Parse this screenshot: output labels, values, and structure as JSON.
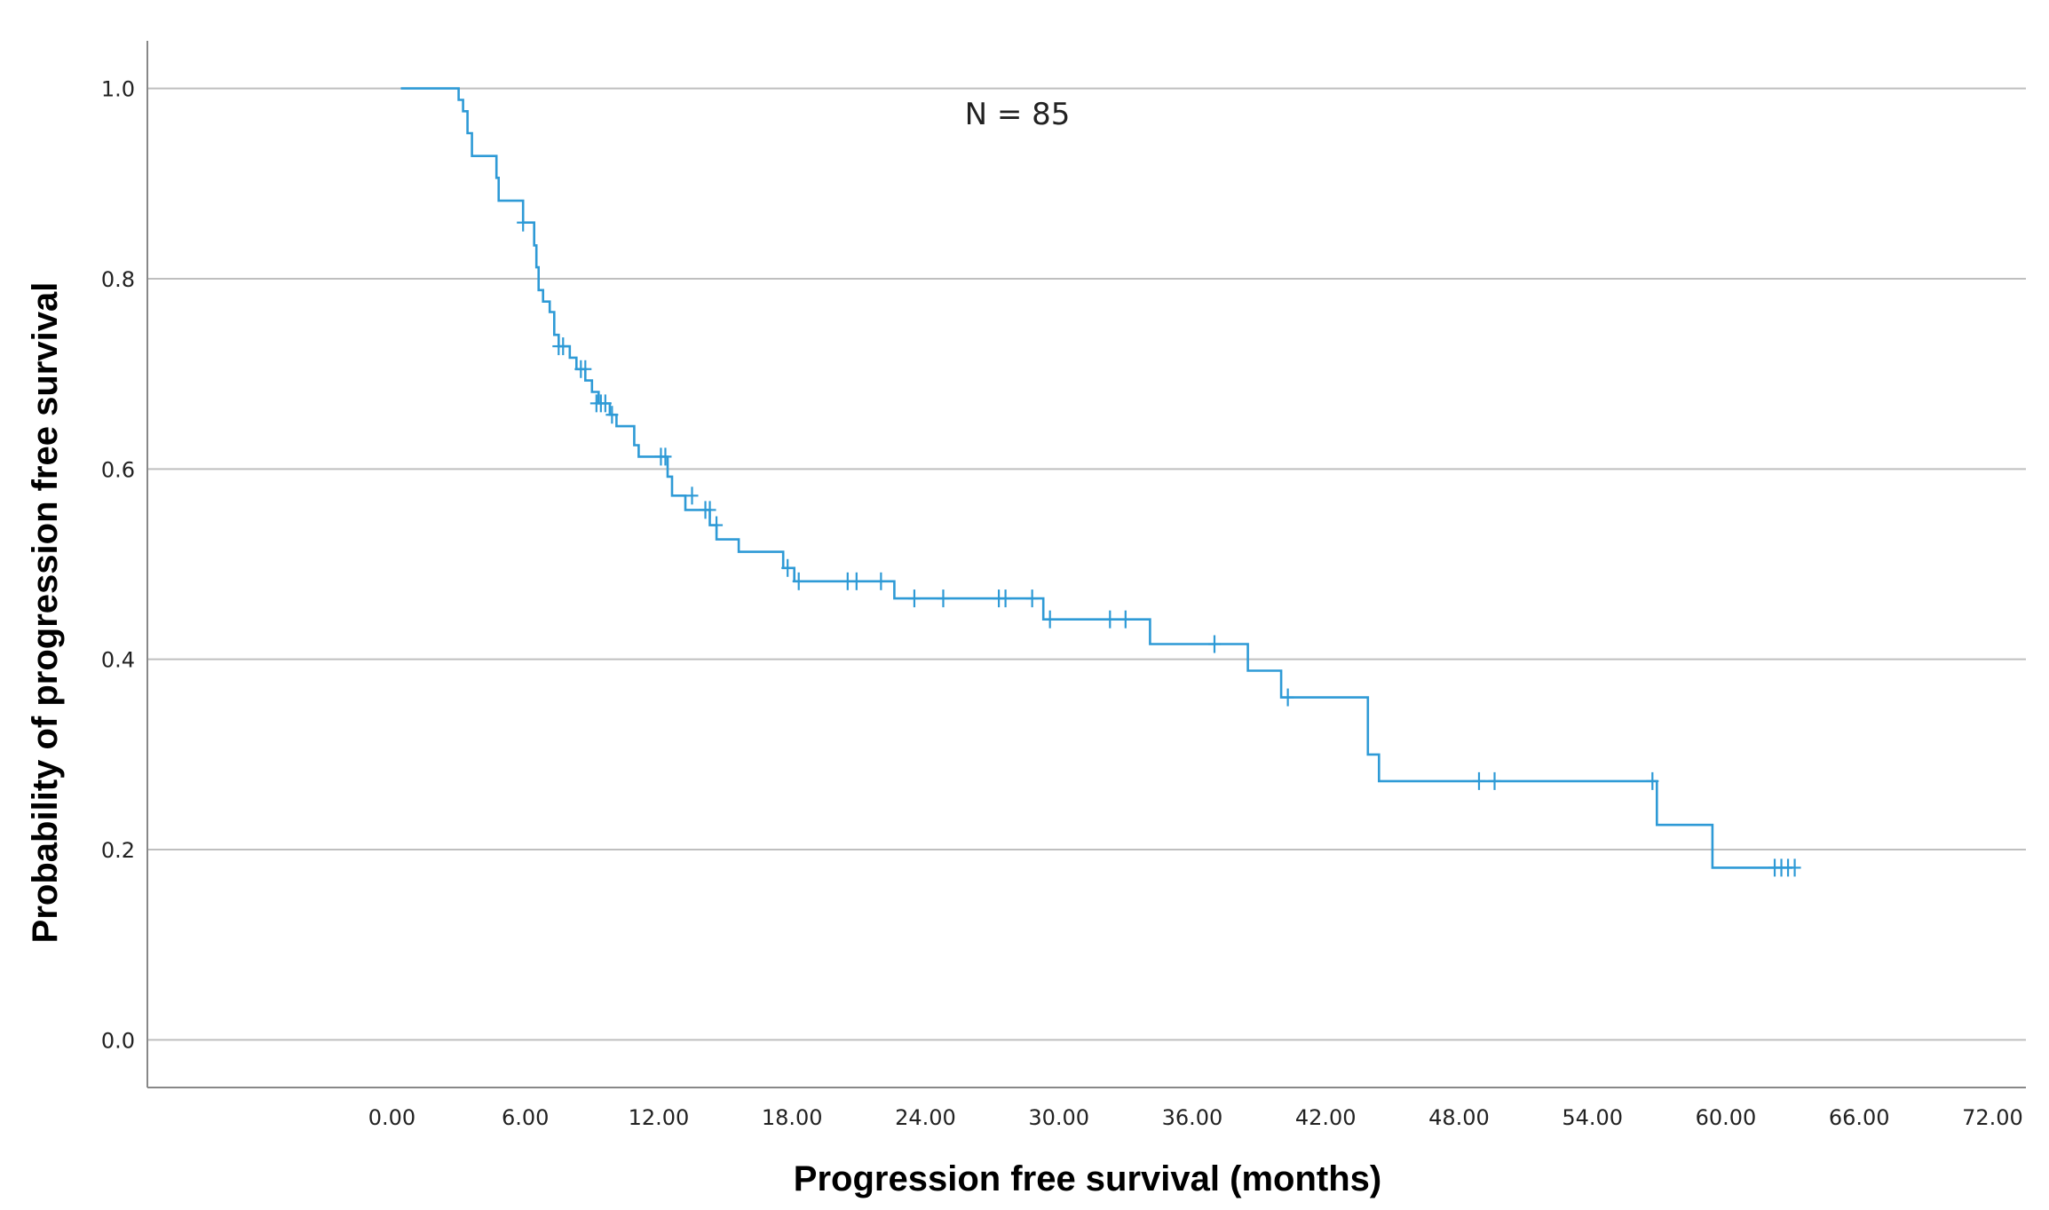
{
  "chart_data": {
    "type": "line",
    "subtype": "kaplan-meier",
    "annotation": "N = 85",
    "xlabel": "Progression free survival (months)",
    "ylabel": "Probability of progression free survival",
    "xlim": [
      -11,
      73.5
    ],
    "ylim": [
      -0.05,
      1.05
    ],
    "x_ticks": [
      0,
      6,
      12,
      18,
      24,
      30,
      36,
      42,
      48,
      54,
      60,
      66,
      72
    ],
    "x_tick_labels": [
      "0.00",
      "6.00",
      "12.00",
      "18.00",
      "24.00",
      "30.00",
      "36.00",
      "42.00",
      "48.00",
      "54.00",
      "60.00",
      "66.00",
      "72.00"
    ],
    "y_ticks": [
      0.0,
      0.2,
      0.4,
      0.6,
      0.8,
      1.0
    ],
    "y_tick_labels": [
      "0.0",
      "0.2",
      "0.4",
      "0.6",
      "0.8",
      "1.0"
    ],
    "grid": "horizontal",
    "colors": {
      "curve": "#2e9ad6",
      "grid": "#bfbfbf",
      "axis": "#888888"
    },
    "series": [
      {
        "name": "Progression free survival",
        "steps": [
          [
            0.4,
            1.0
          ],
          [
            3.0,
            0.988
          ],
          [
            3.2,
            0.976
          ],
          [
            3.4,
            0.953
          ],
          [
            3.6,
            0.929
          ],
          [
            4.7,
            0.906
          ],
          [
            4.8,
            0.882
          ],
          [
            5.9,
            0.859
          ],
          [
            6.4,
            0.835
          ],
          [
            6.5,
            0.812
          ],
          [
            6.6,
            0.788
          ],
          [
            6.8,
            0.776
          ],
          [
            7.1,
            0.765
          ],
          [
            7.3,
            0.741
          ],
          [
            7.5,
            0.729
          ],
          [
            8.0,
            0.717
          ],
          [
            8.3,
            0.705
          ],
          [
            8.7,
            0.693
          ],
          [
            9.0,
            0.681
          ],
          [
            9.3,
            0.669
          ],
          [
            9.8,
            0.657
          ],
          [
            10.1,
            0.645
          ],
          [
            10.9,
            0.625
          ],
          [
            11.1,
            0.613
          ],
          [
            12.4,
            0.592
          ],
          [
            12.6,
            0.572
          ],
          [
            13.2,
            0.557
          ],
          [
            14.3,
            0.541
          ],
          [
            14.6,
            0.526
          ],
          [
            15.6,
            0.513
          ],
          [
            17.6,
            0.496
          ],
          [
            18.1,
            0.482
          ],
          [
            22.6,
            0.464
          ],
          [
            29.3,
            0.442
          ],
          [
            34.1,
            0.416
          ],
          [
            38.5,
            0.388
          ],
          [
            40.0,
            0.36
          ],
          [
            43.9,
            0.3
          ],
          [
            44.4,
            0.272
          ],
          [
            56.9,
            0.226
          ],
          [
            59.4,
            0.181
          ],
          [
            63.0,
            0.181
          ]
        ],
        "censored": [
          [
            5.9,
            0.859
          ],
          [
            7.5,
            0.729
          ],
          [
            7.7,
            0.729
          ],
          [
            8.5,
            0.705
          ],
          [
            8.7,
            0.705
          ],
          [
            9.2,
            0.669
          ],
          [
            9.4,
            0.669
          ],
          [
            9.6,
            0.669
          ],
          [
            9.9,
            0.657
          ],
          [
            12.1,
            0.613
          ],
          [
            12.3,
            0.613
          ],
          [
            13.5,
            0.572
          ],
          [
            14.1,
            0.557
          ],
          [
            14.3,
            0.557
          ],
          [
            14.6,
            0.541
          ],
          [
            17.8,
            0.496
          ],
          [
            18.3,
            0.482
          ],
          [
            20.5,
            0.482
          ],
          [
            20.9,
            0.482
          ],
          [
            22.0,
            0.482
          ],
          [
            23.5,
            0.464
          ],
          [
            24.8,
            0.464
          ],
          [
            27.3,
            0.464
          ],
          [
            27.6,
            0.464
          ],
          [
            28.8,
            0.464
          ],
          [
            29.6,
            0.442
          ],
          [
            32.3,
            0.442
          ],
          [
            33.0,
            0.442
          ],
          [
            37.0,
            0.416
          ],
          [
            40.3,
            0.36
          ],
          [
            48.9,
            0.272
          ],
          [
            49.6,
            0.272
          ],
          [
            56.7,
            0.272
          ],
          [
            62.2,
            0.181
          ],
          [
            62.5,
            0.181
          ],
          [
            62.8,
            0.181
          ],
          [
            63.1,
            0.181
          ]
        ]
      }
    ]
  }
}
